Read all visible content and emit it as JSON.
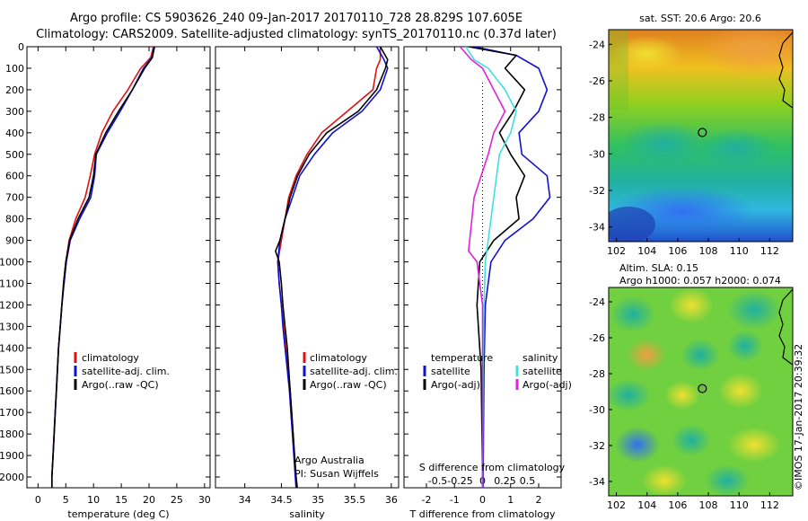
{
  "header": {
    "line1": "Argo profile: CS 5903626_240 09-Jan-2017 20170110_728 28.829S 107.605E",
    "line2": "Climatology: CARS2009. Satellite-adjusted climatology: synTS_20170110.nc (0.37d later)"
  },
  "credit": "©IMOS 17-Jan-2017 20:39:32",
  "colors": {
    "clim": "#e01010",
    "sat": "#1010d0",
    "argo": "#000000",
    "sal_sat": "#40e0e0",
    "sal_argo": "#e020e0"
  },
  "chart_data": [
    {
      "type": "line",
      "xlabel": "temperature (deg C)",
      "xlim": [
        -2,
        31
      ],
      "xticks": [
        0,
        5,
        10,
        15,
        20,
        25,
        30
      ],
      "ylim": [
        0,
        2050
      ],
      "yticks": [
        0,
        100,
        200,
        300,
        400,
        500,
        600,
        700,
        800,
        900,
        1000,
        1100,
        1200,
        1300,
        1400,
        1500,
        1600,
        1700,
        1800,
        1900,
        2000
      ],
      "legend": {
        "position": "lower-right",
        "entries": [
          "climatology",
          "satellite-adj. clim.",
          "Argo(..raw -QC)"
        ]
      },
      "series": [
        {
          "name": "climatology",
          "color": "#e01010",
          "points": [
            [
              20.8,
              0
            ],
            [
              20.3,
              50
            ],
            [
              18.5,
              100
            ],
            [
              16.2,
              200
            ],
            [
              13.5,
              300
            ],
            [
              11.5,
              400
            ],
            [
              10.2,
              500
            ],
            [
              9.4,
              600
            ],
            [
              8.5,
              700
            ],
            [
              6.8,
              800
            ],
            [
              5.6,
              900
            ],
            [
              5.0,
              1000
            ],
            [
              4.6,
              1100
            ],
            [
              4.3,
              1200
            ],
            [
              4.0,
              1300
            ],
            [
              3.7,
              1400
            ],
            [
              3.5,
              1500
            ],
            [
              3.3,
              1600
            ],
            [
              3.1,
              1700
            ],
            [
              2.9,
              1800
            ],
            [
              2.7,
              1900
            ],
            [
              2.5,
              2000
            ],
            [
              2.5,
              2050
            ]
          ]
        },
        {
          "name": "satellite-adj. clim.",
          "color": "#1010d0",
          "points": [
            [
              20.9,
              0
            ],
            [
              20.5,
              50
            ],
            [
              19.0,
              100
            ],
            [
              17.0,
              200
            ],
            [
              14.8,
              300
            ],
            [
              12.5,
              400
            ],
            [
              10.5,
              500
            ],
            [
              10.2,
              600
            ],
            [
              9.5,
              700
            ],
            [
              7.5,
              800
            ],
            [
              5.8,
              900
            ],
            [
              5.1,
              1000
            ],
            [
              4.7,
              1100
            ],
            [
              4.3,
              1200
            ],
            [
              4.0,
              1300
            ],
            [
              3.7,
              1400
            ],
            [
              3.5,
              1500
            ],
            [
              3.3,
              1600
            ],
            [
              3.1,
              1700
            ],
            [
              2.9,
              1800
            ],
            [
              2.7,
              1900
            ],
            [
              2.5,
              2000
            ],
            [
              2.5,
              2050
            ]
          ]
        },
        {
          "name": "Argo(..raw -QC)",
          "color": "#000000",
          "points": [
            [
              21.0,
              0
            ],
            [
              20.6,
              50
            ],
            [
              19.2,
              100
            ],
            [
              17.0,
              200
            ],
            [
              14.5,
              300
            ],
            [
              12.2,
              400
            ],
            [
              10.4,
              500
            ],
            [
              10.0,
              600
            ],
            [
              9.2,
              700
            ],
            [
              7.2,
              800
            ],
            [
              5.7,
              900
            ],
            [
              5.0,
              1000
            ],
            [
              4.6,
              1100
            ],
            [
              4.3,
              1200
            ],
            [
              4.0,
              1300
            ],
            [
              3.7,
              1400
            ],
            [
              3.5,
              1500
            ],
            [
              3.3,
              1600
            ],
            [
              3.1,
              1700
            ],
            [
              2.9,
              1800
            ],
            [
              2.7,
              1900
            ],
            [
              2.5,
              2000
            ],
            [
              2.5,
              2050
            ]
          ]
        }
      ]
    },
    {
      "type": "line",
      "xlabel": "salinity",
      "xlim": [
        33.6,
        36.1
      ],
      "xticks": [
        34,
        34.5,
        35,
        35.5,
        36
      ],
      "ylim": [
        0,
        2050
      ],
      "notes": [
        "Argo Australia",
        "PI: Susan Wijffels"
      ],
      "legend": {
        "position": "lower-right",
        "entries": [
          "climatology",
          "satellite-adj. clim.",
          "Argo(..raw -QC)"
        ]
      },
      "series": [
        {
          "name": "climatology",
          "color": "#e01010",
          "points": [
            [
              35.85,
              0
            ],
            [
              35.85,
              60
            ],
            [
              35.8,
              100
            ],
            [
              35.75,
              200
            ],
            [
              35.4,
              300
            ],
            [
              35.05,
              400
            ],
            [
              34.85,
              500
            ],
            [
              34.7,
              600
            ],
            [
              34.6,
              700
            ],
            [
              34.55,
              800
            ],
            [
              34.5,
              900
            ],
            [
              34.45,
              1000
            ],
            [
              34.47,
              1100
            ],
            [
              34.5,
              1200
            ],
            [
              34.53,
              1300
            ],
            [
              34.56,
              1400
            ],
            [
              34.59,
              1500
            ],
            [
              34.62,
              1600
            ],
            [
              34.64,
              1700
            ],
            [
              34.66,
              1800
            ],
            [
              34.68,
              1900
            ],
            [
              34.7,
              2000
            ],
            [
              34.72,
              2050
            ]
          ]
        },
        {
          "name": "satellite-adj. clim.",
          "color": "#1010d0",
          "points": [
            [
              35.8,
              0
            ],
            [
              35.9,
              60
            ],
            [
              35.95,
              100
            ],
            [
              35.85,
              200
            ],
            [
              35.6,
              300
            ],
            [
              35.2,
              400
            ],
            [
              34.95,
              500
            ],
            [
              34.75,
              600
            ],
            [
              34.65,
              700
            ],
            [
              34.55,
              800
            ],
            [
              34.48,
              900
            ],
            [
              34.45,
              1000
            ],
            [
              34.47,
              1100
            ],
            [
              34.5,
              1200
            ],
            [
              34.52,
              1300
            ],
            [
              34.55,
              1400
            ],
            [
              34.58,
              1500
            ],
            [
              34.61,
              1600
            ],
            [
              34.63,
              1700
            ],
            [
              34.65,
              1800
            ],
            [
              34.67,
              1900
            ],
            [
              34.69,
              2000
            ],
            [
              34.7,
              2050
            ]
          ]
        },
        {
          "name": "Argo(..raw -QC)",
          "color": "#000000",
          "points": [
            [
              35.85,
              0
            ],
            [
              35.95,
              60
            ],
            [
              35.92,
              100
            ],
            [
              35.8,
              200
            ],
            [
              35.55,
              300
            ],
            [
              35.12,
              400
            ],
            [
              34.88,
              500
            ],
            [
              34.72,
              600
            ],
            [
              34.62,
              700
            ],
            [
              34.55,
              800
            ],
            [
              34.48,
              900
            ],
            [
              34.42,
              950
            ],
            [
              34.47,
              1000
            ],
            [
              34.5,
              1100
            ],
            [
              34.52,
              1200
            ],
            [
              34.55,
              1300
            ],
            [
              34.58,
              1400
            ],
            [
              34.6,
              1500
            ],
            [
              34.62,
              1600
            ],
            [
              34.64,
              1700
            ],
            [
              34.66,
              1800
            ],
            [
              34.68,
              1900
            ],
            [
              34.7,
              2000
            ],
            [
              34.71,
              2050
            ]
          ]
        }
      ]
    },
    {
      "type": "line",
      "xlabel": "T difference from climatology",
      "xlabel_top": "S difference from climatology",
      "xlim": [
        -2.8,
        2.8
      ],
      "xticks": [
        -2,
        -1,
        0,
        1,
        2
      ],
      "xticks_top": [
        -0.5,
        -0.25,
        0,
        0.25,
        0.5
      ],
      "ylim": [
        0,
        2050
      ],
      "legend": {
        "position": "lower-center",
        "group_titles": [
          "temperature",
          "salinity"
        ],
        "entries": [
          "satellite",
          "Argo(-adj)",
          "satellite",
          "Argo(-adj)"
        ]
      },
      "series": [
        {
          "name": "temperature satellite",
          "color": "#1010d0",
          "points": [
            [
              -0.3,
              0
            ],
            [
              1.2,
              40
            ],
            [
              2.0,
              100
            ],
            [
              2.3,
              200
            ],
            [
              2.0,
              300
            ],
            [
              1.3,
              400
            ],
            [
              1.4,
              500
            ],
            [
              2.3,
              600
            ],
            [
              2.4,
              700
            ],
            [
              1.8,
              800
            ],
            [
              0.8,
              900
            ],
            [
              0.3,
              1000
            ],
            [
              0.1,
              1200
            ],
            [
              0.05,
              1500
            ],
            [
              0.02,
              2000
            ],
            [
              0.02,
              2050
            ]
          ]
        },
        {
          "name": "temperature Argo(-adj)",
          "color": "#000000",
          "points": [
            [
              -0.5,
              0
            ],
            [
              1.2,
              40
            ],
            [
              0.8,
              100
            ],
            [
              1.5,
              200
            ],
            [
              1.1,
              300
            ],
            [
              0.6,
              400
            ],
            [
              1.0,
              500
            ],
            [
              1.5,
              600
            ],
            [
              1.2,
              700
            ],
            [
              1.3,
              800
            ],
            [
              0.4,
              900
            ],
            [
              -0.1,
              1000
            ],
            [
              -0.2,
              1200
            ],
            [
              -0.05,
              1500
            ],
            [
              0.0,
              2000
            ],
            [
              0.0,
              2050
            ]
          ]
        },
        {
          "name": "salinity satellite",
          "color": "#40e0e0",
          "points": [
            [
              -0.6,
              0
            ],
            [
              -0.3,
              60
            ],
            [
              0.2,
              100
            ],
            [
              0.8,
              200
            ],
            [
              1.2,
              300
            ],
            [
              1.0,
              400
            ],
            [
              0.6,
              500
            ],
            [
              0.4,
              700
            ],
            [
              0.2,
              900
            ],
            [
              0.1,
              1000
            ],
            [
              0.05,
              1200
            ],
            [
              0.02,
              1500
            ],
            [
              0.0,
              2000
            ],
            [
              0.0,
              2050
            ]
          ]
        },
        {
          "name": "salinity Argo(-adj)",
          "color": "#e020e0",
          "points": [
            [
              -0.8,
              0
            ],
            [
              -0.4,
              60
            ],
            [
              0.0,
              100
            ],
            [
              0.4,
              200
            ],
            [
              0.8,
              300
            ],
            [
              0.4,
              400
            ],
            [
              0.2,
              500
            ],
            [
              -0.3,
              700
            ],
            [
              -0.5,
              950
            ],
            [
              -0.2,
              1000
            ],
            [
              0.0,
              1200
            ],
            [
              0.0,
              1500
            ],
            [
              0.0,
              2000
            ],
            [
              0.0,
              2050
            ]
          ]
        }
      ]
    },
    {
      "type": "heatmap",
      "title": "sat. SST: 20.6  Argo: 20.6",
      "xlim": [
        101.5,
        113.5
      ],
      "ylim": [
        -34.8,
        -23.2
      ],
      "xticks": [
        102,
        104,
        106,
        108,
        110,
        112
      ],
      "yticks": [
        -24,
        -26,
        -28,
        -30,
        -32,
        -34
      ],
      "marker": [
        107.605,
        -28.829
      ]
    },
    {
      "type": "heatmap",
      "title": "Altim. SLA: 0.15",
      "subtitle": "Argo h1000: 0.057 h2000: 0.074",
      "xlim": [
        101.5,
        113.5
      ],
      "ylim": [
        -34.8,
        -23.2
      ],
      "xticks": [
        102,
        104,
        106,
        108,
        110,
        112
      ],
      "yticks": [
        -24,
        -26,
        -28,
        -30,
        -32,
        -34
      ],
      "marker": [
        107.605,
        -28.829
      ]
    }
  ]
}
